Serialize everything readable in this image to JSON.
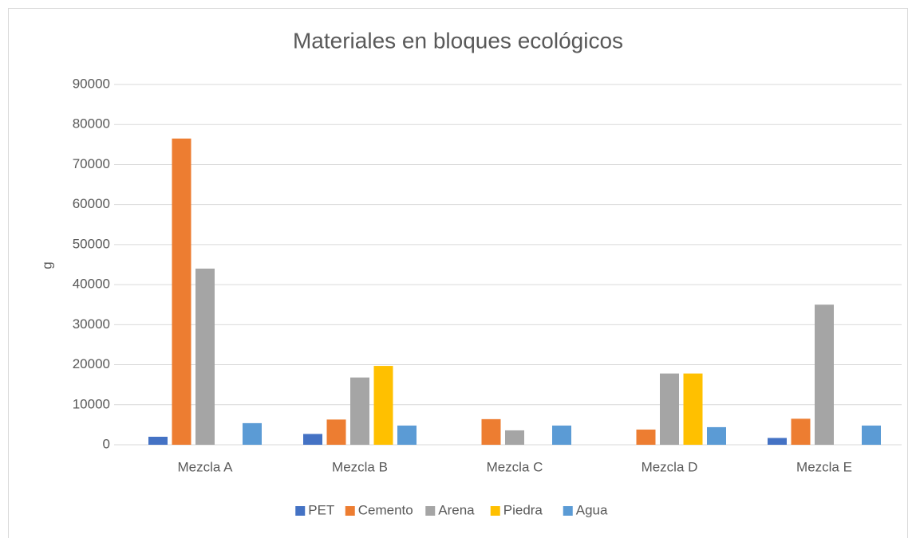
{
  "chart_data": {
    "type": "bar",
    "title": "Materiales en bloques ecológicos",
    "y_label": "g",
    "categories": [
      "Mezcla A",
      "Mezcla B",
      "Mezcla C",
      "Mezcla D",
      "Mezcla E"
    ],
    "series": [
      {
        "name": "PET",
        "color": "#4472c4",
        "values": [
          2000,
          2700,
          0,
          0,
          1700
        ]
      },
      {
        "name": "Cemento",
        "color": "#ed7d31",
        "values": [
          76500,
          6300,
          6400,
          3800,
          6500
        ]
      },
      {
        "name": "Arena",
        "color": "#a5a5a5",
        "values": [
          44000,
          16800,
          3600,
          17800,
          35000
        ]
      },
      {
        "name": "Piedra",
        "color": "#ffc000",
        "values": [
          0,
          19700,
          0,
          17800,
          0
        ]
      },
      {
        "name": "Agua",
        "color": "#5b9bd5",
        "values": [
          5400,
          4800,
          4800,
          4400,
          4800
        ]
      }
    ],
    "ylim": [
      0,
      90000
    ],
    "yticks": [
      0,
      10000,
      20000,
      30000,
      40000,
      50000,
      60000,
      70000,
      80000,
      90000
    ],
    "grid": true,
    "legend": "bottom"
  }
}
